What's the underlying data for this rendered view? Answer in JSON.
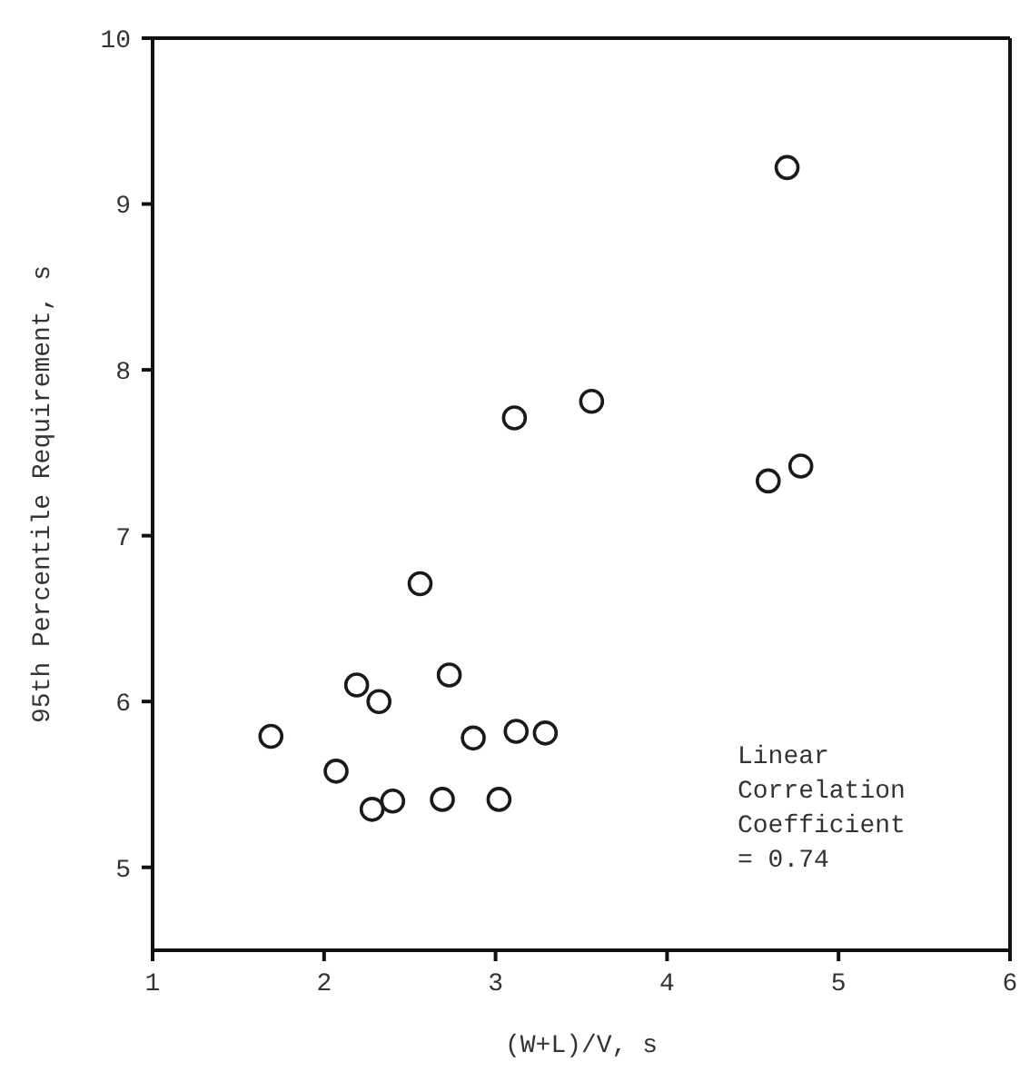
{
  "chart_data": {
    "type": "scatter",
    "xlabel": "(W+L)/V, s",
    "ylabel": "95th Percentile Requirement, s",
    "x": [
      1.69,
      2.07,
      2.19,
      2.32,
      2.28,
      2.4,
      2.56,
      2.69,
      2.73,
      2.87,
      3.02,
      3.12,
      3.29,
      3.11,
      3.56,
      4.7,
      4.59,
      4.78
    ],
    "values": [
      5.79,
      5.58,
      6.1,
      6.0,
      5.35,
      5.4,
      6.71,
      5.41,
      6.16,
      5.78,
      5.41,
      5.82,
      5.81,
      7.71,
      7.81,
      9.22,
      7.33,
      7.42
    ],
    "color": "#1a1a1a",
    "marker": "circle",
    "xlim": [
      1,
      6
    ],
    "xticks": [
      1,
      2,
      3,
      4,
      5,
      6
    ],
    "ylim": [
      4.5,
      10
    ],
    "yticks": [
      5,
      6,
      7,
      8,
      9,
      10
    ],
    "annotations": [
      "Linear\nCorrelation\nCoefficient\n= 0.74"
    ]
  }
}
